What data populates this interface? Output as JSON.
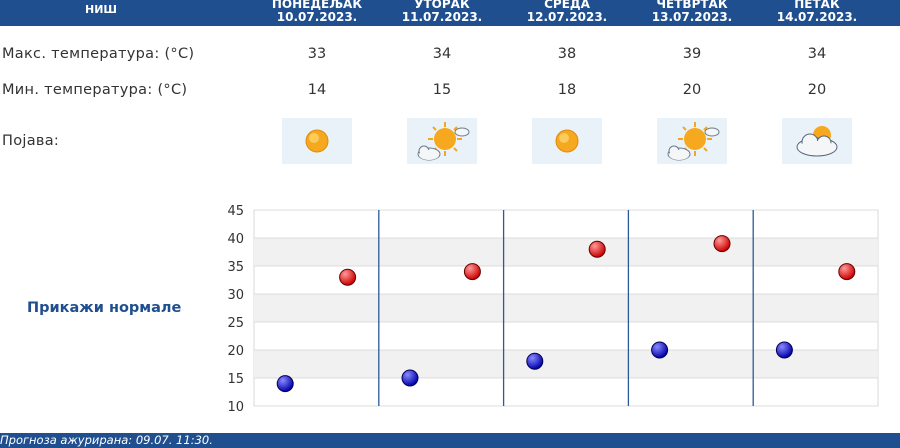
{
  "header": {
    "city": "НИШ",
    "days": [
      {
        "name": "ПОНЕДЕЉАК",
        "date": "10.07.2023."
      },
      {
        "name": "УТОРАК",
        "date": "11.07.2023."
      },
      {
        "name": "СРЕДА",
        "date": "12.07.2023."
      },
      {
        "name": "ЧЕТВРТАК",
        "date": "13.07.2023."
      },
      {
        "name": "ПЕТАК",
        "date": "14.07.2023."
      }
    ]
  },
  "rows": {
    "max_label": "Макс. температура: (°C)",
    "min_label": "Мин. температура: (°C)",
    "phenomenon_label": "Појава:"
  },
  "values": {
    "max": [
      "33",
      "34",
      "38",
      "39",
      "34"
    ],
    "min": [
      "14",
      "15",
      "18",
      "20",
      "20"
    ]
  },
  "icons": [
    "sunny-icon",
    "partly-cloudy-icon",
    "sunny-icon",
    "partly-cloudy-icon",
    "cloudy-sun-icon"
  ],
  "normals_button": "Прикажи нормале",
  "footer": {
    "updated": "Прогноза ажурирана:  09.07.  11:30."
  },
  "colors": {
    "header_bg": "#1f4f8f",
    "max_marker": "#cc0000",
    "min_marker": "#0000aa"
  },
  "chart_data": {
    "type": "scatter",
    "categories": [
      "10.07.2023.",
      "11.07.2023.",
      "12.07.2023.",
      "13.07.2023.",
      "14.07.2023."
    ],
    "series": [
      {
        "values": [
          33,
          34,
          38,
          39,
          34
        ],
        "color": "#cc0000"
      },
      {
        "values": [
          14,
          15,
          18,
          20,
          20
        ],
        "color": "#0000aa"
      }
    ],
    "ylim": [
      10,
      45
    ],
    "yticks": [
      10,
      15,
      20,
      25,
      30,
      35,
      40,
      45
    ],
    "grid": true
  }
}
